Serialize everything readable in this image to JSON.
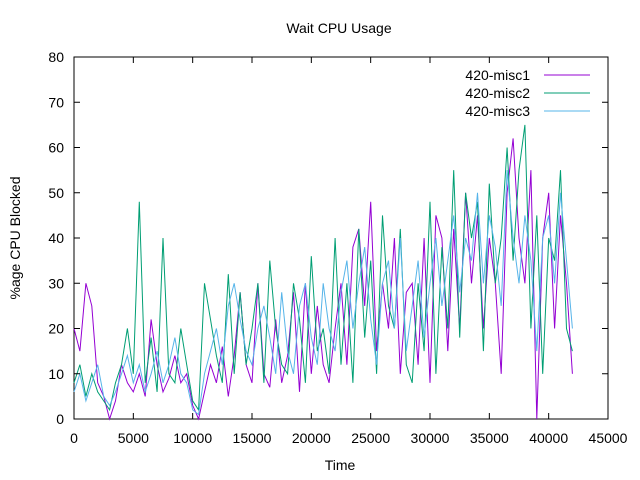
{
  "chart_data": {
    "type": "line",
    "title": "Wait CPU Usage",
    "xlabel": "Time",
    "ylabel": "%age CPU Blocked",
    "xlim": [
      0,
      45000
    ],
    "ylim": [
      0,
      80
    ],
    "x_ticks": [
      0,
      5000,
      10000,
      15000,
      20000,
      25000,
      30000,
      35000,
      40000,
      45000
    ],
    "y_ticks": [
      0,
      10,
      20,
      30,
      40,
      50,
      60,
      70,
      80
    ],
    "grid": false,
    "legend_position": "top-right",
    "series": [
      {
        "name": "420-misc1",
        "color": "#9400d3",
        "x": [
          0,
          500,
          1000,
          1500,
          2000,
          2500,
          3000,
          3500,
          4000,
          4500,
          5000,
          5500,
          6000,
          6500,
          7000,
          7500,
          8000,
          8500,
          9000,
          9500,
          10000,
          10500,
          11000,
          11500,
          12000,
          12500,
          13000,
          13500,
          14000,
          14500,
          15000,
          15500,
          16000,
          16500,
          17000,
          17500,
          18000,
          18500,
          19000,
          19500,
          20000,
          20500,
          21000,
          21500,
          22000,
          22500,
          23000,
          23500,
          24000,
          24500,
          25000,
          25500,
          26000,
          26500,
          27000,
          27500,
          28000,
          28500,
          29000,
          29500,
          30000,
          30500,
          31000,
          31500,
          32000,
          32500,
          33000,
          33500,
          34000,
          34500,
          35000,
          35500,
          36000,
          36500,
          37000,
          37500,
          38000,
          38500,
          39000,
          39500,
          40000,
          40500,
          41000,
          41500,
          42000
        ],
        "values": [
          20,
          15,
          30,
          25,
          8,
          5,
          0,
          4,
          12,
          8,
          6,
          10,
          5,
          22,
          12,
          6,
          9,
          14,
          8,
          10,
          3,
          0,
          6,
          12,
          8,
          16,
          5,
          14,
          28,
          12,
          8,
          30,
          10,
          7,
          22,
          8,
          14,
          28,
          6,
          30,
          10,
          25,
          12,
          8,
          20,
          30,
          12,
          38,
          42,
          25,
          48,
          15,
          30,
          20,
          40,
          10,
          28,
          30,
          12,
          40,
          8,
          45,
          40,
          15,
          42,
          20,
          50,
          30,
          45,
          20,
          40,
          30,
          10,
          50,
          62,
          40,
          30,
          55,
          0,
          40,
          50,
          20,
          45,
          30,
          10
        ]
      },
      {
        "name": "420-misc2",
        "color": "#009e73",
        "x": [
          0,
          500,
          1000,
          1500,
          2000,
          2500,
          3000,
          3500,
          4000,
          4500,
          5000,
          5500,
          6000,
          6500,
          7000,
          7500,
          8000,
          8500,
          9000,
          9500,
          10000,
          10500,
          11000,
          11500,
          12000,
          12500,
          13000,
          13500,
          14000,
          14500,
          15000,
          15500,
          16000,
          16500,
          17000,
          17500,
          18000,
          18500,
          19000,
          19500,
          20000,
          20500,
          21000,
          21500,
          22000,
          22500,
          23000,
          23500,
          24000,
          24500,
          25000,
          25500,
          26000,
          26500,
          27000,
          27500,
          28000,
          28500,
          29000,
          29500,
          30000,
          30500,
          31000,
          31500,
          32000,
          32500,
          33000,
          33500,
          34000,
          34500,
          35000,
          35500,
          36000,
          36500,
          37000,
          37500,
          38000,
          38500,
          39000,
          39500,
          40000,
          40500,
          41000,
          41500,
          42000
        ],
        "values": [
          8,
          12,
          5,
          10,
          6,
          4,
          2,
          8,
          12,
          20,
          10,
          48,
          8,
          18,
          6,
          40,
          10,
          8,
          20,
          12,
          4,
          2,
          30,
          22,
          14,
          8,
          32,
          10,
          28,
          12,
          20,
          30,
          8,
          35,
          20,
          12,
          10,
          30,
          22,
          8,
          36,
          15,
          20,
          10,
          40,
          12,
          30,
          8,
          42,
          18,
          35,
          10,
          45,
          25,
          20,
          42,
          12,
          8,
          30,
          15,
          48,
          10,
          38,
          20,
          55,
          18,
          50,
          40,
          48,
          15,
          52,
          30,
          40,
          60,
          35,
          55,
          65,
          20,
          45,
          10,
          40,
          35,
          55,
          20,
          15
        ]
      },
      {
        "name": "420-misc3",
        "color": "#56b4e9",
        "x": [
          0,
          500,
          1000,
          1500,
          2000,
          2500,
          3000,
          3500,
          4000,
          4500,
          5000,
          5500,
          6000,
          6500,
          7000,
          7500,
          8000,
          8500,
          9000,
          9500,
          10000,
          10500,
          11000,
          11500,
          12000,
          12500,
          13000,
          13500,
          14000,
          14500,
          15000,
          15500,
          16000,
          16500,
          17000,
          17500,
          18000,
          18500,
          19000,
          19500,
          20000,
          20500,
          21000,
          21500,
          22000,
          22500,
          23000,
          23500,
          24000,
          24500,
          25000,
          25500,
          26000,
          26500,
          27000,
          27500,
          28000,
          28500,
          29000,
          29500,
          30000,
          30500,
          31000,
          31500,
          32000,
          32500,
          33000,
          33500,
          34000,
          34500,
          35000,
          35500,
          36000,
          36500,
          37000,
          37500,
          38000,
          38500,
          39000,
          39500,
          40000,
          40500,
          41000,
          41500,
          42000
        ],
        "values": [
          6,
          10,
          4,
          8,
          12,
          5,
          3,
          6,
          10,
          14,
          8,
          12,
          6,
          10,
          15,
          8,
          12,
          18,
          10,
          8,
          2,
          1,
          10,
          15,
          20,
          12,
          25,
          30,
          22,
          15,
          12,
          20,
          25,
          18,
          10,
          28,
          15,
          10,
          25,
          30,
          18,
          12,
          30,
          20,
          15,
          28,
          35,
          20,
          30,
          38,
          22,
          12,
          30,
          35,
          20,
          40,
          15,
          25,
          35,
          18,
          30,
          40,
          25,
          35,
          45,
          28,
          40,
          35,
          50,
          30,
          45,
          38,
          25,
          55,
          40,
          30,
          45,
          35,
          15,
          40,
          45,
          30,
          50,
          35,
          20
        ]
      }
    ]
  }
}
